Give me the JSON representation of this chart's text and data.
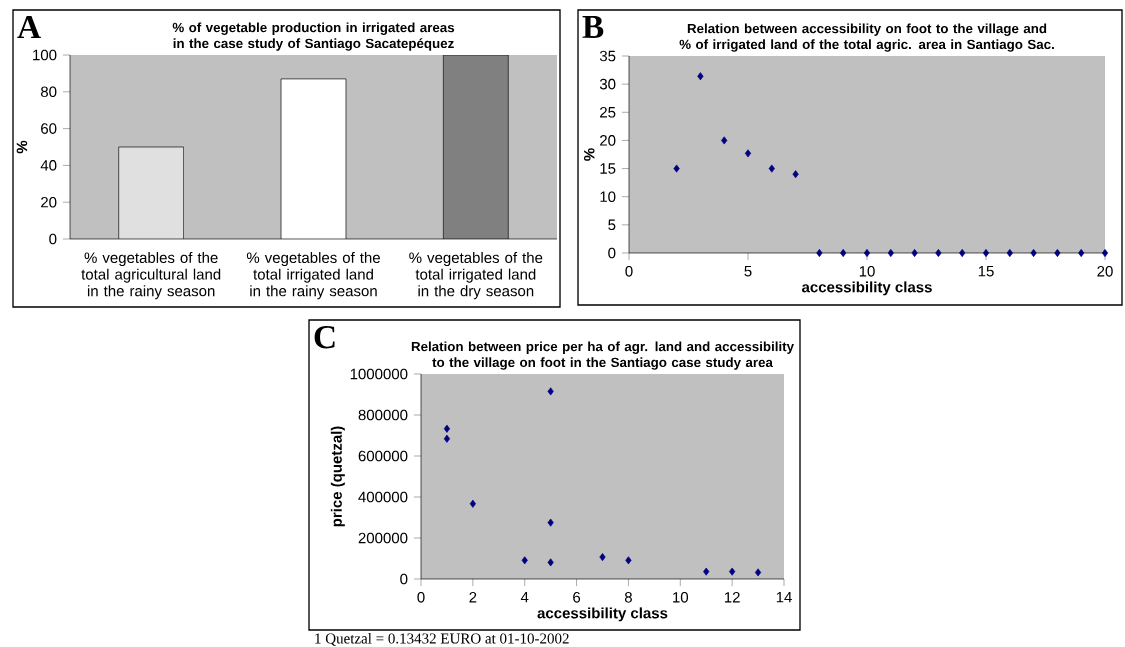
{
  "chart_data": [
    {
      "type": "bar",
      "title": "% of vegetable production in irrigated areas in the case study of Santiago Sacatepéquez",
      "ylabel": "%",
      "categories": [
        "% vegetables of the total agricultural land in the rainy season",
        "% vegetables of the total irrigated land in the rainy season",
        "% vegetables of the total irrigated land in the dry season"
      ],
      "values": [
        50,
        87,
        100
      ],
      "colors": [
        "#e0e0e0",
        "#ffffff",
        "#808080"
      ],
      "ylim": [
        0,
        100
      ],
      "yticks": [
        0,
        20,
        40,
        60,
        80,
        100
      ],
      "annotations": [
        "A"
      ]
    },
    {
      "type": "scatter",
      "title": "Relation between accessibility on foot to the village and % of irrigated land of the total agric. area in Santiago Sac.",
      "xlabel": "accessibility class",
      "ylabel": "%",
      "x": [
        2,
        3,
        4,
        5,
        6,
        7,
        8,
        9,
        10,
        11,
        12,
        13,
        14,
        15,
        16,
        17,
        18,
        19,
        20
      ],
      "values": [
        15,
        31.4,
        20,
        17.7,
        15,
        14,
        0,
        0,
        0,
        0,
        0,
        0,
        0,
        0,
        0,
        0,
        0,
        0,
        0
      ],
      "color": "#000080",
      "marker": "diamond",
      "xlim": [
        0,
        20
      ],
      "xticks": [
        0,
        5,
        10,
        15,
        20
      ],
      "ylim": [
        0,
        35
      ],
      "yticks": [
        0,
        5,
        10,
        15,
        20,
        25,
        30,
        35
      ],
      "annotations": [
        "B"
      ]
    },
    {
      "type": "scatter",
      "title": "Relation between price per ha of agr. land and accessibility to the village on foot in the Santiago case study area",
      "xlabel": "accessibility class",
      "ylabel": "price (quetzal)",
      "x": [
        1,
        1,
        2,
        4,
        5,
        5,
        5,
        7,
        8,
        11,
        12,
        13
      ],
      "values": [
        733000,
        684000,
        367000,
        91000,
        915000,
        275000,
        81000,
        107000,
        91000,
        36000,
        36000,
        32000
      ],
      "color": "#000080",
      "marker": "diamond",
      "xlim": [
        0,
        14
      ],
      "xticks": [
        0,
        2,
        4,
        6,
        8,
        10,
        12,
        14
      ],
      "ylim": [
        0,
        1000000
      ],
      "yticks": [
        0,
        200000,
        400000,
        600000,
        800000,
        1000000
      ],
      "annotations": [
        "C",
        "1 Quetzal = 0.13432 EURO at 01-10-2002"
      ]
    }
  ]
}
